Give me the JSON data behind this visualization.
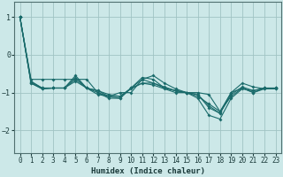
{
  "xlabel": "Humidex (Indice chaleur)",
  "ylabel": "",
  "bg_color": "#cce8e8",
  "grid_color": "#a0c4c4",
  "line_color": "#1a6b6b",
  "xlim": [
    -0.5,
    23.5
  ],
  "ylim": [
    -2.6,
    1.4
  ],
  "yticks": [
    -2,
    -1,
    0,
    1
  ],
  "xticks": [
    0,
    1,
    2,
    3,
    4,
    5,
    6,
    7,
    8,
    9,
    10,
    11,
    12,
    13,
    14,
    15,
    16,
    17,
    18,
    19,
    20,
    21,
    22,
    23
  ],
  "series": [
    [
      1.0,
      -0.65,
      -0.65,
      -0.65,
      -0.65,
      -0.65,
      -0.65,
      -1.0,
      -1.1,
      -1.0,
      -1.0,
      -0.65,
      -0.55,
      -0.75,
      -0.9,
      -1.0,
      -1.0,
      -1.05,
      -1.5,
      -1.0,
      -0.75,
      -0.85,
      -0.9,
      -0.9
    ],
    [
      1.0,
      -0.72,
      -0.88,
      -0.88,
      -0.88,
      -0.6,
      -0.88,
      -1.0,
      -1.15,
      -1.15,
      -0.88,
      -0.6,
      -0.65,
      -0.88,
      -0.95,
      -1.0,
      -1.1,
      -1.3,
      -1.5,
      -1.1,
      -0.88,
      -1.0,
      -0.88,
      -0.88
    ],
    [
      1.0,
      -0.75,
      -0.9,
      -0.88,
      -0.88,
      -0.7,
      -0.88,
      -0.95,
      -1.05,
      -1.1,
      -0.9,
      -0.75,
      -0.8,
      -0.9,
      -1.0,
      -1.0,
      -1.15,
      -1.6,
      -1.7,
      -1.15,
      -0.9,
      -0.95,
      -0.88,
      -0.88
    ],
    [
      1.0,
      -0.75,
      -0.9,
      -0.88,
      -0.88,
      -0.55,
      -0.88,
      -1.05,
      -1.1,
      -1.15,
      -0.88,
      -0.75,
      -0.75,
      -0.88,
      -0.95,
      -1.0,
      -1.05,
      -1.35,
      -1.55,
      -1.0,
      -0.88,
      -1.0,
      -0.9,
      -0.88
    ],
    [
      1.0,
      -0.7,
      -0.88,
      -0.88,
      -0.88,
      -0.65,
      -0.88,
      -0.95,
      -1.1,
      -1.1,
      -0.88,
      -0.65,
      -0.75,
      -0.85,
      -0.95,
      -1.0,
      -1.05,
      -1.4,
      -1.55,
      -1.05,
      -0.85,
      -0.95,
      -0.88,
      -0.9
    ]
  ],
  "tick_fontsize": 5.5,
  "xlabel_fontsize": 6.5,
  "spine_color": "#507070"
}
